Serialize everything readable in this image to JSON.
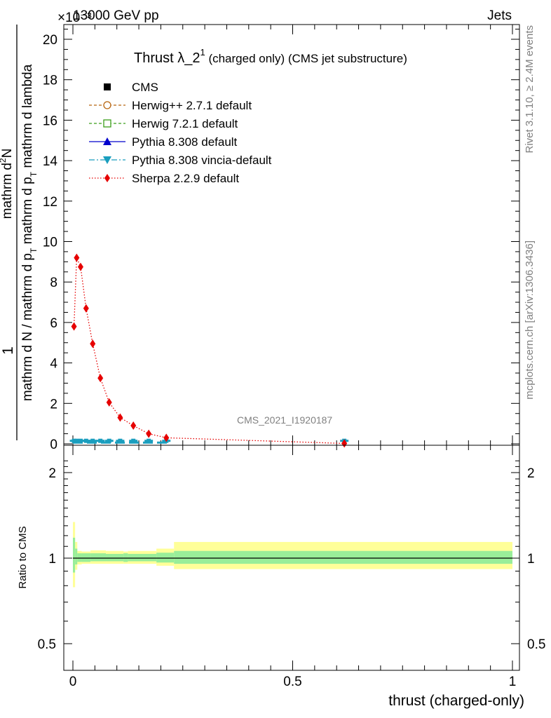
{
  "header": {
    "left": "13000 GeV pp",
    "right": "Jets",
    "exponent": "×10⁻³"
  },
  "side": {
    "rivet": "Rivet 3.1.10, ≥ 2.4M events",
    "mcplots": "mcplots.cern.ch [arXiv:1306.3436]"
  },
  "title": {
    "main": "Thrust λ_2",
    "sup": "1",
    "sub": " (charged only) (CMS jet substructure)"
  },
  "watermark": "CMS_2021_I1920187",
  "ylabel_top": {
    "one": "1",
    "numer": "mathrm d",
    "numer_sup": "2",
    "numer_tail": "N",
    "denom_a": "mathrm d N / mathrm d p",
    "denom_a_sub": "T",
    "denom_b": " mathrm d p",
    "denom_b_sub": "T",
    "denom_c": " mathrm d lambda"
  },
  "ylabel_bottom": "Ratio to CMS",
  "xlabel": "thrust (charged-only)",
  "legend": [
    {
      "label": "CMS",
      "color": "#000000",
      "marker": "square-filled",
      "line": "none"
    },
    {
      "label": "Herwig++ 2.7.1 default",
      "color": "#b8650f",
      "marker": "circle-open",
      "line": "dashed"
    },
    {
      "label": "Herwig 7.2.1 default",
      "color": "#3b9e1a",
      "marker": "square-open",
      "line": "dashed"
    },
    {
      "label": "Pythia 8.308 default",
      "color": "#0000cc",
      "marker": "triangle-up",
      "line": "solid"
    },
    {
      "label": "Pythia 8.308 vincia-default",
      "color": "#1a9ebe",
      "marker": "triangle-down",
      "line": "dashdot"
    },
    {
      "label": "Sherpa 2.2.9 default",
      "color": "#e60000",
      "marker": "diamond",
      "line": "dotted"
    }
  ],
  "chart_data": [
    {
      "type": "line",
      "panel": "main",
      "xlabel": "",
      "ylabel": "1 / mathrm d N / mathrm d p_T mathrm d p_T mathrm d lambda · mathrm d²N",
      "xlim": [
        0,
        1
      ],
      "ylim": [
        0,
        20.8
      ],
      "y_scale_factor": "×10⁻³",
      "yticks": [
        0,
        2,
        4,
        6,
        8,
        10,
        12,
        14,
        16,
        18,
        20
      ],
      "series": [
        {
          "name": "Sherpa 2.2.9 default",
          "color": "#e60000",
          "x": [
            0.0025,
            0.0085,
            0.0175,
            0.03,
            0.045,
            0.0625,
            0.0825,
            0.1075,
            0.1375,
            0.1725,
            0.2125,
            0.6175
          ],
          "y": [
            5.8,
            9.2,
            8.75,
            6.7,
            4.95,
            3.25,
            2.05,
            1.3,
            0.9,
            0.5,
            0.3,
            0.02
          ]
        },
        {
          "name": "CMS",
          "color": "#000000",
          "x": [
            0.0025,
            0.0085,
            0.0175,
            0.03,
            0.045,
            0.0625,
            0.0825,
            0.1075,
            0.1375,
            0.1725,
            0.2125,
            0.6175
          ],
          "y": [
            0.08,
            0.08,
            0.08,
            0.08,
            0.08,
            0.08,
            0.08,
            0.08,
            0.08,
            0.08,
            0.08,
            0.08
          ]
        }
      ]
    },
    {
      "type": "area",
      "panel": "ratio",
      "xlabel": "thrust (charged-only)",
      "ylabel": "Ratio to CMS",
      "xlim": [
        0,
        1
      ],
      "ylim": [
        0.4,
        2.35
      ],
      "ylog": true,
      "xticks": [
        0,
        0.5,
        1
      ],
      "yticks": [
        0.5,
        1,
        2
      ],
      "bins": [
        {
          "lo": 0.0,
          "hi": 0.005,
          "stat": [
            0.89,
            1.18
          ],
          "tot": [
            0.79,
            1.34
          ]
        },
        {
          "lo": 0.005,
          "hi": 0.01,
          "stat": [
            0.95,
            1.08
          ],
          "tot": [
            0.91,
            1.14
          ]
        },
        {
          "lo": 0.01,
          "hi": 0.02,
          "stat": [
            0.97,
            1.04
          ],
          "tot": [
            0.95,
            1.06
          ]
        },
        {
          "lo": 0.02,
          "hi": 0.04,
          "stat": [
            0.97,
            1.04
          ],
          "tot": [
            0.955,
            1.055
          ]
        },
        {
          "lo": 0.04,
          "hi": 0.075,
          "stat": [
            0.975,
            1.04
          ],
          "tot": [
            0.955,
            1.065
          ]
        },
        {
          "lo": 0.075,
          "hi": 0.115,
          "stat": [
            0.975,
            1.035
          ],
          "tot": [
            0.955,
            1.06
          ]
        },
        {
          "lo": 0.115,
          "hi": 0.125,
          "stat": [
            0.97,
            1.04
          ],
          "tot": [
            0.955,
            1.055
          ]
        },
        {
          "lo": 0.125,
          "hi": 0.19,
          "stat": [
            0.975,
            1.035
          ],
          "tot": [
            0.955,
            1.06
          ]
        },
        {
          "lo": 0.19,
          "hi": 0.23,
          "stat": [
            0.965,
            1.045
          ],
          "tot": [
            0.94,
            1.08
          ]
        },
        {
          "lo": 0.23,
          "hi": 1.0,
          "stat": [
            0.955,
            1.06
          ],
          "tot": [
            0.915,
            1.14
          ]
        }
      ]
    }
  ],
  "colors": {
    "stat_band": "#99ee99",
    "total_band": "#ffff99",
    "sherpa": "#e60000",
    "vincia": "#1a9ebe"
  }
}
